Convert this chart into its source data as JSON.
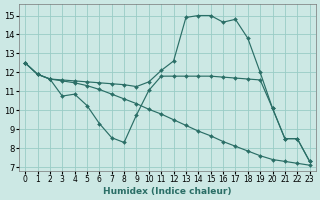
{
  "xlabel": "Humidex (Indice chaleur)",
  "bg_color": "#cce8e4",
  "grid_color": "#99ccc6",
  "line_color": "#2a6e66",
  "xlim": [
    -0.5,
    23.5
  ],
  "ylim": [
    6.8,
    15.6
  ],
  "yticks": [
    7,
    8,
    9,
    10,
    11,
    12,
    13,
    14,
    15
  ],
  "xticks": [
    0,
    1,
    2,
    3,
    4,
    5,
    6,
    7,
    8,
    9,
    10,
    11,
    12,
    13,
    14,
    15,
    16,
    17,
    18,
    19,
    20,
    21,
    22,
    23
  ],
  "lines": [
    {
      "x": [
        0,
        1,
        2,
        3,
        4,
        5,
        6,
        7,
        8,
        9,
        10,
        11,
        12,
        13,
        14,
        15,
        16,
        17,
        18,
        19,
        20,
        21,
        22,
        23
      ],
      "y": [
        12.5,
        11.9,
        11.65,
        11.6,
        11.55,
        11.5,
        11.45,
        11.4,
        11.35,
        11.25,
        11.5,
        12.1,
        12.6,
        14.9,
        15.0,
        15.0,
        14.65,
        14.8,
        13.8,
        12.0,
        10.1,
        8.5,
        8.5,
        7.3
      ]
    },
    {
      "x": [
        0,
        1,
        2,
        3,
        4,
        5,
        6,
        7,
        8,
        9,
        10,
        11,
        12,
        13,
        14,
        15,
        16,
        17,
        18,
        19,
        20,
        21,
        22,
        23
      ],
      "y": [
        12.5,
        11.9,
        11.65,
        10.75,
        10.85,
        10.25,
        9.3,
        8.55,
        8.3,
        9.75,
        11.05,
        11.8,
        11.8,
        11.8,
        11.8,
        11.8,
        11.75,
        11.7,
        11.65,
        11.6,
        10.1,
        8.5,
        8.5,
        7.3
      ]
    },
    {
      "x": [
        0,
        1,
        2,
        3,
        4,
        5,
        6,
        7,
        8,
        9,
        10,
        11,
        12,
        13,
        14,
        15,
        16,
        17,
        18,
        19,
        20,
        21,
        22,
        23
      ],
      "y": [
        12.5,
        11.9,
        11.65,
        11.55,
        11.45,
        11.3,
        11.1,
        10.85,
        10.6,
        10.35,
        10.05,
        9.8,
        9.5,
        9.2,
        8.9,
        8.65,
        8.35,
        8.1,
        7.85,
        7.6,
        7.4,
        7.3,
        7.2,
        7.1
      ]
    }
  ]
}
